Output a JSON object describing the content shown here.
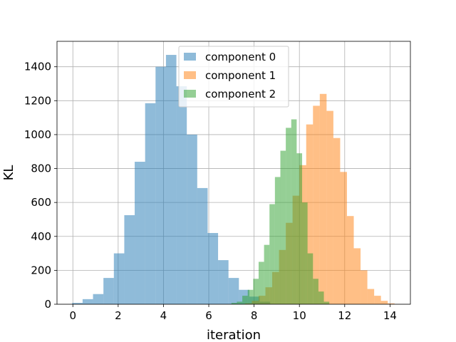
{
  "chart_data": {
    "type": "bar",
    "subtype": "histogram",
    "xlabel": "iteration",
    "ylabel": "KL",
    "xlim": [
      -0.7,
      14.9
    ],
    "ylim": [
      0,
      1550
    ],
    "xticks": [
      0,
      2,
      4,
      6,
      8,
      10,
      12,
      14
    ],
    "yticks": [
      0,
      200,
      400,
      600,
      800,
      1000,
      1200,
      1400
    ],
    "grid": true,
    "legend_position": "upper-center",
    "bar_opacity": 0.5,
    "series": [
      {
        "name": "component 0",
        "color": "#1f77b4",
        "bin_edges": [
          -0.03,
          0.43,
          0.89,
          1.35,
          1.81,
          2.27,
          2.73,
          3.19,
          3.65,
          4.11,
          4.57,
          5.03,
          5.49,
          5.95,
          6.41,
          6.87,
          7.33,
          7.79,
          8.25,
          8.71
        ],
        "counts": [
          8,
          30,
          60,
          155,
          300,
          525,
          840,
          1185,
          1400,
          1470,
          1285,
          1000,
          685,
          420,
          260,
          155,
          85,
          45,
          15
        ]
      },
      {
        "name": "component 1",
        "color": "#ff7f0e",
        "bin_edges": [
          7.6,
          7.9,
          8.2,
          8.5,
          8.8,
          9.1,
          9.4,
          9.7,
          10.0,
          10.3,
          10.6,
          10.9,
          11.2,
          11.5,
          11.8,
          12.1,
          12.4,
          12.7,
          13.0,
          13.3,
          13.6,
          13.9,
          14.2
        ],
        "counts": [
          5,
          20,
          50,
          100,
          190,
          320,
          480,
          640,
          820,
          1060,
          1170,
          1240,
          1140,
          980,
          780,
          520,
          330,
          200,
          90,
          50,
          20,
          5
        ]
      },
      {
        "name": "component 2",
        "color": "#2ca02c",
        "bin_edges": [
          7.0,
          7.24,
          7.48,
          7.72,
          7.96,
          8.2,
          8.44,
          8.68,
          8.92,
          9.16,
          9.4,
          9.64,
          9.88,
          10.12,
          10.36,
          10.6,
          10.84,
          11.08,
          11.32
        ],
        "counts": [
          8,
          15,
          50,
          85,
          150,
          250,
          350,
          590,
          750,
          905,
          1040,
          1090,
          890,
          600,
          300,
          150,
          75,
          15
        ]
      }
    ]
  }
}
